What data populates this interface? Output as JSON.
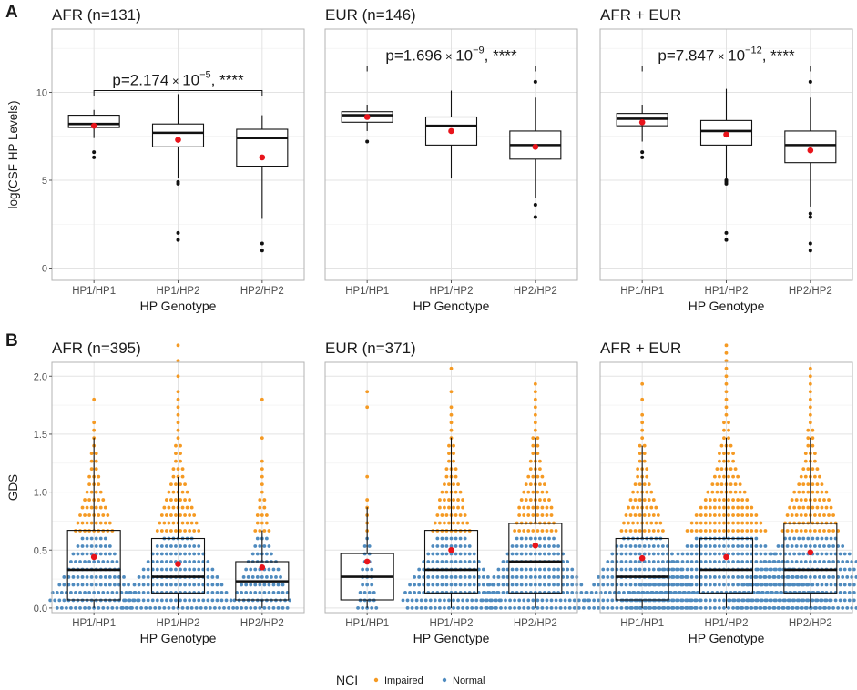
{
  "panel_labels": [
    "A",
    "B"
  ],
  "colors": {
    "panel_bg": "#ffffff",
    "panel_border": "#b3b3b3",
    "grid": "#e3e3e3",
    "mean_dot": "#e8141b",
    "impaired": "#f59a23",
    "normal": "#4f8bbf",
    "text": "#1a1a1a",
    "tick_text": "#4d4d4d"
  },
  "chart_data": [
    {
      "type": "box",
      "row": "A",
      "title": "AFR (n=131)",
      "xlabel": "HP Genotype",
      "ylabel": "log(CSF HP Levels)",
      "categories": [
        "HP1/HP1",
        "HP1/HP2",
        "HP2/HP2"
      ],
      "ylim": [
        -0.7,
        13.6
      ],
      "yticks": [
        0,
        5,
        10
      ],
      "boxes": [
        {
          "q1": 8.0,
          "median": 8.2,
          "q3": 8.7,
          "wlo": 7.4,
          "whi": 9.0,
          "mean": 8.1,
          "outliers": [
            6.6,
            6.3
          ]
        },
        {
          "q1": 6.9,
          "median": 7.7,
          "q3": 8.2,
          "wlo": 5.1,
          "whi": 9.9,
          "mean": 7.3,
          "outliers": [
            4.9,
            4.8,
            2.0,
            1.6
          ]
        },
        {
          "q1": 5.8,
          "median": 7.4,
          "q3": 7.9,
          "wlo": 2.8,
          "whi": 8.7,
          "mean": 6.3,
          "outliers": [
            1.4,
            1.0
          ]
        }
      ],
      "annotation": {
        "text": "p=2.174",
        "times": "×",
        "base": "10",
        "exp": "−5",
        "stars": ", ****",
        "y": 10.1,
        "x_from": 0,
        "x_to": 2
      }
    },
    {
      "type": "box",
      "row": "A",
      "title": "EUR (n=146)",
      "xlabel": "HP Genotype",
      "ylabel": "",
      "categories": [
        "HP1/HP1",
        "HP1/HP2",
        "HP2/HP2"
      ],
      "ylim": [
        -0.7,
        13.6
      ],
      "yticks": [
        0,
        5,
        10
      ],
      "boxes": [
        {
          "q1": 8.3,
          "median": 8.7,
          "q3": 8.9,
          "wlo": 7.8,
          "whi": 9.3,
          "mean": 8.6,
          "outliers": [
            7.2
          ]
        },
        {
          "q1": 7.0,
          "median": 8.1,
          "q3": 8.6,
          "wlo": 5.1,
          "whi": 10.1,
          "mean": 7.8,
          "outliers": []
        },
        {
          "q1": 6.2,
          "median": 7.0,
          "q3": 7.8,
          "wlo": 4.0,
          "whi": 9.7,
          "mean": 6.9,
          "outliers": [
            10.6,
            3.6,
            2.9
          ]
        }
      ],
      "annotation": {
        "text": "p=1.696",
        "times": "×",
        "base": "10",
        "exp": "−9",
        "stars": ", ****",
        "y": 11.5,
        "x_from": 0,
        "x_to": 2
      }
    },
    {
      "type": "box",
      "row": "A",
      "title": "AFR + EUR",
      "xlabel": "HP Genotype",
      "ylabel": "",
      "categories": [
        "HP1/HP1",
        "HP1/HP2",
        "HP2/HP2"
      ],
      "ylim": [
        -0.7,
        13.6
      ],
      "yticks": [
        0,
        5,
        10
      ],
      "boxes": [
        {
          "q1": 8.1,
          "median": 8.5,
          "q3": 8.8,
          "wlo": 7.2,
          "whi": 9.3,
          "mean": 8.3,
          "outliers": [
            6.6,
            6.3
          ]
        },
        {
          "q1": 7.0,
          "median": 7.8,
          "q3": 8.4,
          "wlo": 5.1,
          "whi": 10.2,
          "mean": 7.6,
          "outliers": [
            5.0,
            4.9,
            4.8,
            2.0,
            1.6
          ]
        },
        {
          "q1": 6.0,
          "median": 7.0,
          "q3": 7.8,
          "wlo": 3.5,
          "whi": 9.7,
          "mean": 6.7,
          "outliers": [
            10.6,
            3.1,
            2.9,
            1.4,
            1.0
          ]
        }
      ],
      "annotation": {
        "text": "p=7.847",
        "times": "×",
        "base": "10",
        "exp": "−12",
        "stars": ", ****",
        "y": 11.5,
        "x_from": 0,
        "x_to": 2
      }
    },
    {
      "type": "box",
      "row": "B",
      "title": "AFR (n=395)",
      "xlabel": "HP Genotype",
      "ylabel": "GDS",
      "categories": [
        "HP1/HP1",
        "HP1/HP2",
        "HP2/HP2"
      ],
      "ylim": [
        -0.04,
        2.12
      ],
      "yticks": [
        0.0,
        0.5,
        1.0,
        1.5,
        2.0
      ],
      "boxes": [
        {
          "q1": 0.07,
          "median": 0.33,
          "q3": 0.67,
          "wlo": 0.0,
          "whi": 1.47,
          "mean": 0.44
        },
        {
          "q1": 0.13,
          "median": 0.27,
          "q3": 0.6,
          "wlo": 0.0,
          "whi": 1.13,
          "mean": 0.38
        },
        {
          "q1": 0.07,
          "median": 0.23,
          "q3": 0.4,
          "wlo": 0.0,
          "whi": 0.67,
          "mean": 0.35
        }
      ],
      "dots": [
        {
          "normal_counts": [
            17,
            20,
            19,
            16,
            14,
            12,
            11,
            10,
            8,
            6
          ],
          "impaired_counts": [
            9,
            8,
            7,
            6,
            5,
            4,
            3,
            3,
            2,
            2,
            2,
            1,
            1,
            1,
            1,
            0,
            0,
            1
          ]
        },
        {
          "normal_counts": [
            25,
            24,
            22,
            20,
            18,
            16,
            14,
            12,
            10,
            7
          ],
          "impaired_counts": [
            10,
            9,
            8,
            7,
            6,
            5,
            4,
            3,
            3,
            2,
            2,
            2,
            1,
            1,
            1,
            1,
            1,
            1,
            1,
            0,
            1,
            0,
            1,
            0,
            1
          ]
        },
        {
          "normal_counts": [
            12,
            13,
            12,
            10,
            9,
            8,
            7,
            5,
            4,
            3
          ],
          "impaired_counts": [
            4,
            3,
            3,
            2,
            2,
            1,
            1,
            1,
            1,
            1,
            0,
            0,
            1,
            0,
            0,
            0,
            0,
            1
          ]
        }
      ]
    },
    {
      "type": "box",
      "row": "B",
      "title": "EUR (n=371)",
      "xlabel": "HP Genotype",
      "ylabel": "",
      "categories": [
        "HP1/HP1",
        "HP1/HP2",
        "HP2/HP2"
      ],
      "ylim": [
        -0.04,
        2.12
      ],
      "yticks": [
        0.0,
        0.5,
        1.0,
        1.5,
        2.0
      ],
      "boxes": [
        {
          "q1": 0.07,
          "median": 0.27,
          "q3": 0.47,
          "wlo": 0.0,
          "whi": 0.87,
          "mean": 0.4
        },
        {
          "q1": 0.13,
          "median": 0.33,
          "q3": 0.67,
          "wlo": 0.0,
          "whi": 1.47,
          "mean": 0.5
        },
        {
          "q1": 0.13,
          "median": 0.4,
          "q3": 0.73,
          "wlo": 0.0,
          "whi": 1.47,
          "mean": 0.54
        }
      ],
      "dots": [
        {
          "normal_counts": [
            5,
            4,
            4,
            3,
            3,
            3,
            2,
            2,
            2,
            1
          ],
          "impaired_counts": [
            1,
            1,
            1,
            1,
            1,
            0,
            0,
            1,
            0,
            0,
            0,
            0,
            0,
            0,
            0,
            0,
            1,
            0,
            1
          ]
        },
        {
          "normal_counts": [
            20,
            22,
            21,
            19,
            17,
            15,
            13,
            11,
            9,
            7
          ],
          "impaired_counts": [
            9,
            8,
            7,
            6,
            6,
            5,
            4,
            3,
            3,
            2,
            2,
            2,
            1,
            1,
            1,
            1,
            1,
            0,
            1,
            0,
            0,
            1
          ]
        },
        {
          "normal_counts": [
            22,
            24,
            23,
            21,
            19,
            17,
            15,
            13,
            11,
            9
          ],
          "impaired_counts": [
            10,
            9,
            8,
            8,
            7,
            6,
            5,
            4,
            3,
            3,
            2,
            2,
            2,
            1,
            1,
            1,
            1,
            1,
            1,
            1
          ]
        }
      ]
    },
    {
      "type": "box",
      "row": "B",
      "title": "AFR + EUR",
      "xlabel": "HP Genotype",
      "ylabel": "",
      "categories": [
        "HP1/HP1",
        "HP1/HP2",
        "HP2/HP2"
      ],
      "ylim": [
        -0.04,
        2.12
      ],
      "yticks": [
        0.0,
        0.5,
        1.0,
        1.5,
        2.0
      ],
      "boxes": [
        {
          "q1": 0.07,
          "median": 0.27,
          "q3": 0.6,
          "wlo": 0.0,
          "whi": 1.4,
          "mean": 0.43
        },
        {
          "q1": 0.13,
          "median": 0.33,
          "q3": 0.6,
          "wlo": 0.0,
          "whi": 1.47,
          "mean": 0.44
        },
        {
          "q1": 0.13,
          "median": 0.33,
          "q3": 0.73,
          "wlo": 0.0,
          "whi": 1.47,
          "mean": 0.48
        }
      ],
      "dots": [
        {
          "normal_counts": [
            24,
            26,
            25,
            22,
            20,
            18,
            16,
            14,
            12,
            9
          ],
          "impaired_counts": [
            10,
            9,
            8,
            7,
            6,
            5,
            4,
            3,
            3,
            2,
            2,
            2,
            1,
            1,
            1,
            1,
            0,
            1,
            0,
            1
          ]
        },
        {
          "normal_counts": [
            44,
            46,
            43,
            38,
            34,
            30,
            26,
            22,
            18,
            14
          ],
          "impaired_counts": [
            18,
            16,
            14,
            12,
            10,
            9,
            7,
            6,
            5,
            4,
            4,
            3,
            2,
            2,
            2,
            1,
            1,
            1,
            1,
            1,
            1,
            1,
            1,
            1,
            1
          ]
        },
        {
          "normal_counts": [
            33,
            36,
            34,
            30,
            27,
            24,
            21,
            18,
            15,
            12
          ],
          "impaired_counts": [
            13,
            12,
            11,
            10,
            9,
            8,
            6,
            5,
            4,
            3,
            3,
            2,
            2,
            2,
            1,
            1,
            1,
            1,
            1,
            1,
            1,
            1
          ]
        }
      ]
    }
  ],
  "legend": {
    "title": "NCI",
    "items": [
      {
        "label": "Impaired",
        "color": "#f59a23"
      },
      {
        "label": "Normal",
        "color": "#4f8bbf"
      }
    ]
  }
}
